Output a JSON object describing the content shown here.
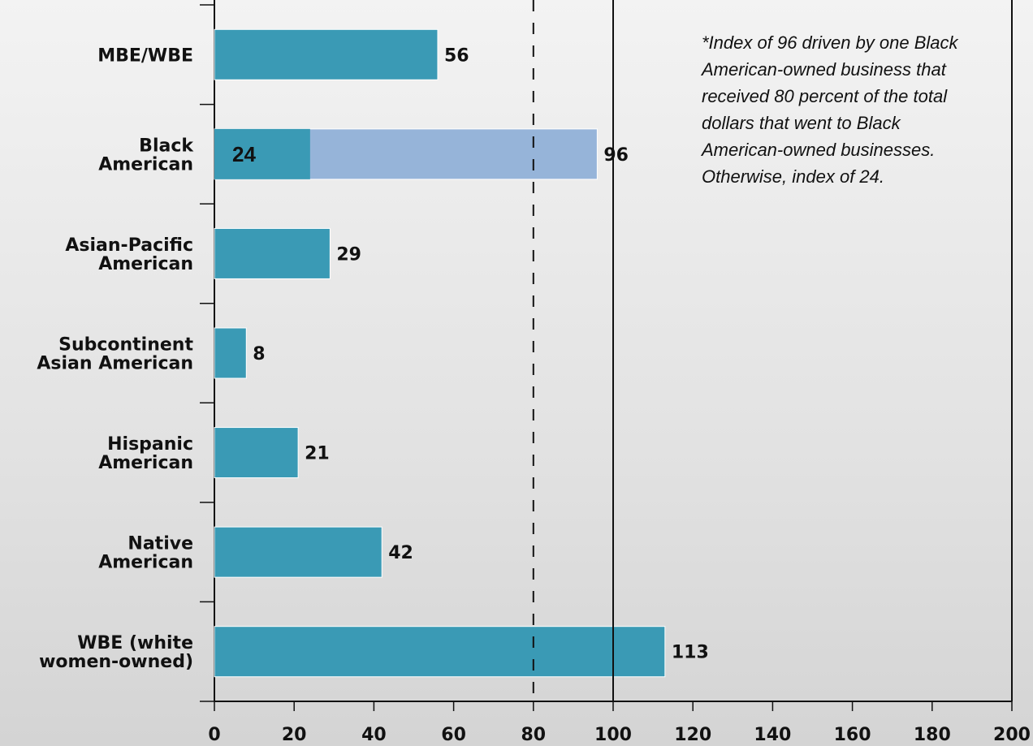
{
  "chart_data": {
    "type": "bar",
    "orientation": "horizontal",
    "categories": [
      [
        "MBE/WBE"
      ],
      [
        "Black",
        "American"
      ],
      [
        "Asian-Pacific",
        "American"
      ],
      [
        "Subcontinent",
        "Asian American"
      ],
      [
        "Hispanic",
        "American"
      ],
      [
        "Native",
        "American"
      ],
      [
        "WBE (white",
        "women-owned)"
      ]
    ],
    "values": [
      56,
      96,
      29,
      8,
      21,
      42,
      113
    ],
    "value_labels": [
      "56",
      "96",
      "29",
      "8",
      "21",
      "42",
      "113"
    ],
    "inner_segment": {
      "category_index": 1,
      "value": 24,
      "label": "24"
    },
    "xlim": [
      0,
      200
    ],
    "xticks": [
      0,
      20,
      40,
      60,
      80,
      100,
      120,
      140,
      160,
      180,
      200
    ],
    "reference_lines": [
      {
        "value": 80,
        "style": "dashed"
      },
      {
        "value": 100,
        "style": "solid"
      }
    ],
    "colors": {
      "bar": "#3a9ab5",
      "bar_extension": "#96b4d9",
      "axis": "#111111"
    },
    "note": [
      "*Index of 96 driven by one Black",
      "American-owned business that",
      "received 80 percent of the total",
      "dollars that went to Black",
      "American-owned businesses.",
      "Otherwise, index of 24."
    ]
  }
}
